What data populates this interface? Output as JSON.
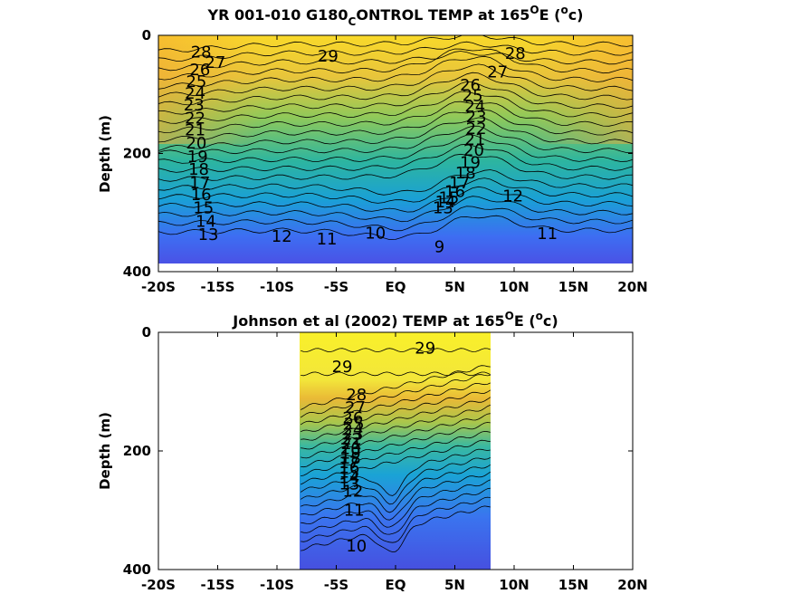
{
  "chart_data": [
    {
      "type": "contour",
      "title": "YR 001-010 G180",
      "title_sub": "C",
      "title_rest": "ONTROL TEMP at 165",
      "title_sup": "O",
      "title_end": "E (",
      "title_sup2": "o",
      "title_close": "c)",
      "ylabel": "Depth (m)",
      "xlabel": "",
      "xlim": [
        -20,
        20
      ],
      "ylim": [
        0,
        400
      ],
      "x_ticks": [
        -20,
        -15,
        -10,
        -5,
        0,
        5,
        10,
        15,
        20
      ],
      "x_tick_labels": [
        "-20S",
        "-15S",
        "-10S",
        "-5S",
        "EQ",
        "5N",
        "10N",
        "15N",
        "20N"
      ],
      "y_ticks": [
        0,
        200,
        400
      ],
      "y_tick_labels": [
        "0",
        "200",
        "400"
      ],
      "data_x_extent": [
        -20,
        20
      ],
      "data_depth_extent": [
        0,
        385
      ],
      "colormap": "parula",
      "color_range": [
        8,
        30
      ],
      "contour_labels": [
        {
          "text": "29",
          "x": -5.7,
          "y": 35
        },
        {
          "text": "28",
          "x": -16.4,
          "y": 28
        },
        {
          "text": "27",
          "x": -15.2,
          "y": 46
        },
        {
          "text": "26",
          "x": -16.5,
          "y": 58
        },
        {
          "text": "25",
          "x": -16.8,
          "y": 78
        },
        {
          "text": "24",
          "x": -16.9,
          "y": 98
        },
        {
          "text": "23",
          "x": -17.0,
          "y": 118
        },
        {
          "text": "22",
          "x": -16.9,
          "y": 140
        },
        {
          "text": "21",
          "x": -16.9,
          "y": 160
        },
        {
          "text": "20",
          "x": -16.8,
          "y": 182
        },
        {
          "text": "19",
          "x": -16.7,
          "y": 205
        },
        {
          "text": "18",
          "x": -16.6,
          "y": 227
        },
        {
          "text": "17",
          "x": -16.5,
          "y": 250
        },
        {
          "text": "16",
          "x": -16.4,
          "y": 270
        },
        {
          "text": "15",
          "x": -16.2,
          "y": 292
        },
        {
          "text": "14",
          "x": -16.0,
          "y": 315
        },
        {
          "text": "13",
          "x": -15.8,
          "y": 337
        },
        {
          "text": "12",
          "x": -9.6,
          "y": 340
        },
        {
          "text": "11",
          "x": -5.8,
          "y": 345
        },
        {
          "text": "10",
          "x": -1.7,
          "y": 335
        },
        {
          "text": "9",
          "x": 3.7,
          "y": 358
        },
        {
          "text": "28",
          "x": 10.1,
          "y": 31
        },
        {
          "text": "27",
          "x": 8.6,
          "y": 62
        },
        {
          "text": "26",
          "x": 6.3,
          "y": 84
        },
        {
          "text": "25",
          "x": 6.5,
          "y": 102
        },
        {
          "text": "24",
          "x": 6.7,
          "y": 120
        },
        {
          "text": "23",
          "x": 6.8,
          "y": 138
        },
        {
          "text": "22",
          "x": 6.8,
          "y": 158
        },
        {
          "text": "21",
          "x": 6.7,
          "y": 176
        },
        {
          "text": "20",
          "x": 6.6,
          "y": 195
        },
        {
          "text": "19",
          "x": 6.3,
          "y": 215
        },
        {
          "text": "18",
          "x": 5.9,
          "y": 233
        },
        {
          "text": "17",
          "x": 5.4,
          "y": 250
        },
        {
          "text": "16",
          "x": 5.0,
          "y": 264
        },
        {
          "text": "15",
          "x": 4.5,
          "y": 275
        },
        {
          "text": "14",
          "x": 4.2,
          "y": 282
        },
        {
          "text": "13",
          "x": 4.0,
          "y": 292
        },
        {
          "text": "12",
          "x": 9.9,
          "y": 272
        },
        {
          "text": "11",
          "x": 12.8,
          "y": 336
        }
      ]
    },
    {
      "type": "contour",
      "title": "Johnson et al (2002) TEMP at 165",
      "title_sup": "O",
      "title_end": "E (",
      "title_sup2": "o",
      "title_close": "c)",
      "ylabel": "Depth (m)",
      "xlabel": "",
      "xlim": [
        -20,
        20
      ],
      "ylim": [
        0,
        400
      ],
      "x_ticks": [
        -20,
        -15,
        -10,
        -5,
        0,
        5,
        10,
        15,
        20
      ],
      "x_tick_labels": [
        "-20S",
        "-15S",
        "-10S",
        "-5S",
        "EQ",
        "5N",
        "10N",
        "15N",
        "20N"
      ],
      "y_ticks": [
        0,
        200,
        400
      ],
      "y_tick_labels": [
        "0",
        "200",
        "400"
      ],
      "data_x_extent": [
        -8,
        8
      ],
      "data_depth_extent": [
        0,
        400
      ],
      "colormap": "parula",
      "color_range": [
        8,
        30
      ],
      "contour_labels": [
        {
          "text": "29",
          "x": -4.5,
          "y": 58
        },
        {
          "text": "29",
          "x": 2.5,
          "y": 27
        },
        {
          "text": "28",
          "x": -3.3,
          "y": 105
        },
        {
          "text": "27",
          "x": -3.4,
          "y": 127
        },
        {
          "text": "26",
          "x": -3.6,
          "y": 144
        },
        {
          "text": "25",
          "x": -3.5,
          "y": 154
        },
        {
          "text": "24",
          "x": -3.6,
          "y": 164
        },
        {
          "text": "23",
          "x": -3.6,
          "y": 172
        },
        {
          "text": "22",
          "x": -3.7,
          "y": 180
        },
        {
          "text": "21",
          "x": -3.7,
          "y": 188
        },
        {
          "text": "20",
          "x": -3.8,
          "y": 196
        },
        {
          "text": "19",
          "x": -3.8,
          "y": 204
        },
        {
          "text": "18",
          "x": -3.8,
          "y": 212
        },
        {
          "text": "17",
          "x": -3.9,
          "y": 220
        },
        {
          "text": "16",
          "x": -3.9,
          "y": 228
        },
        {
          "text": "15",
          "x": -3.9,
          "y": 236
        },
        {
          "text": "14",
          "x": -3.9,
          "y": 245
        },
        {
          "text": "13",
          "x": -3.9,
          "y": 256
        },
        {
          "text": "12",
          "x": -3.6,
          "y": 268
        },
        {
          "text": "11",
          "x": -3.5,
          "y": 300
        },
        {
          "text": "10",
          "x": -3.3,
          "y": 360
        }
      ]
    }
  ]
}
